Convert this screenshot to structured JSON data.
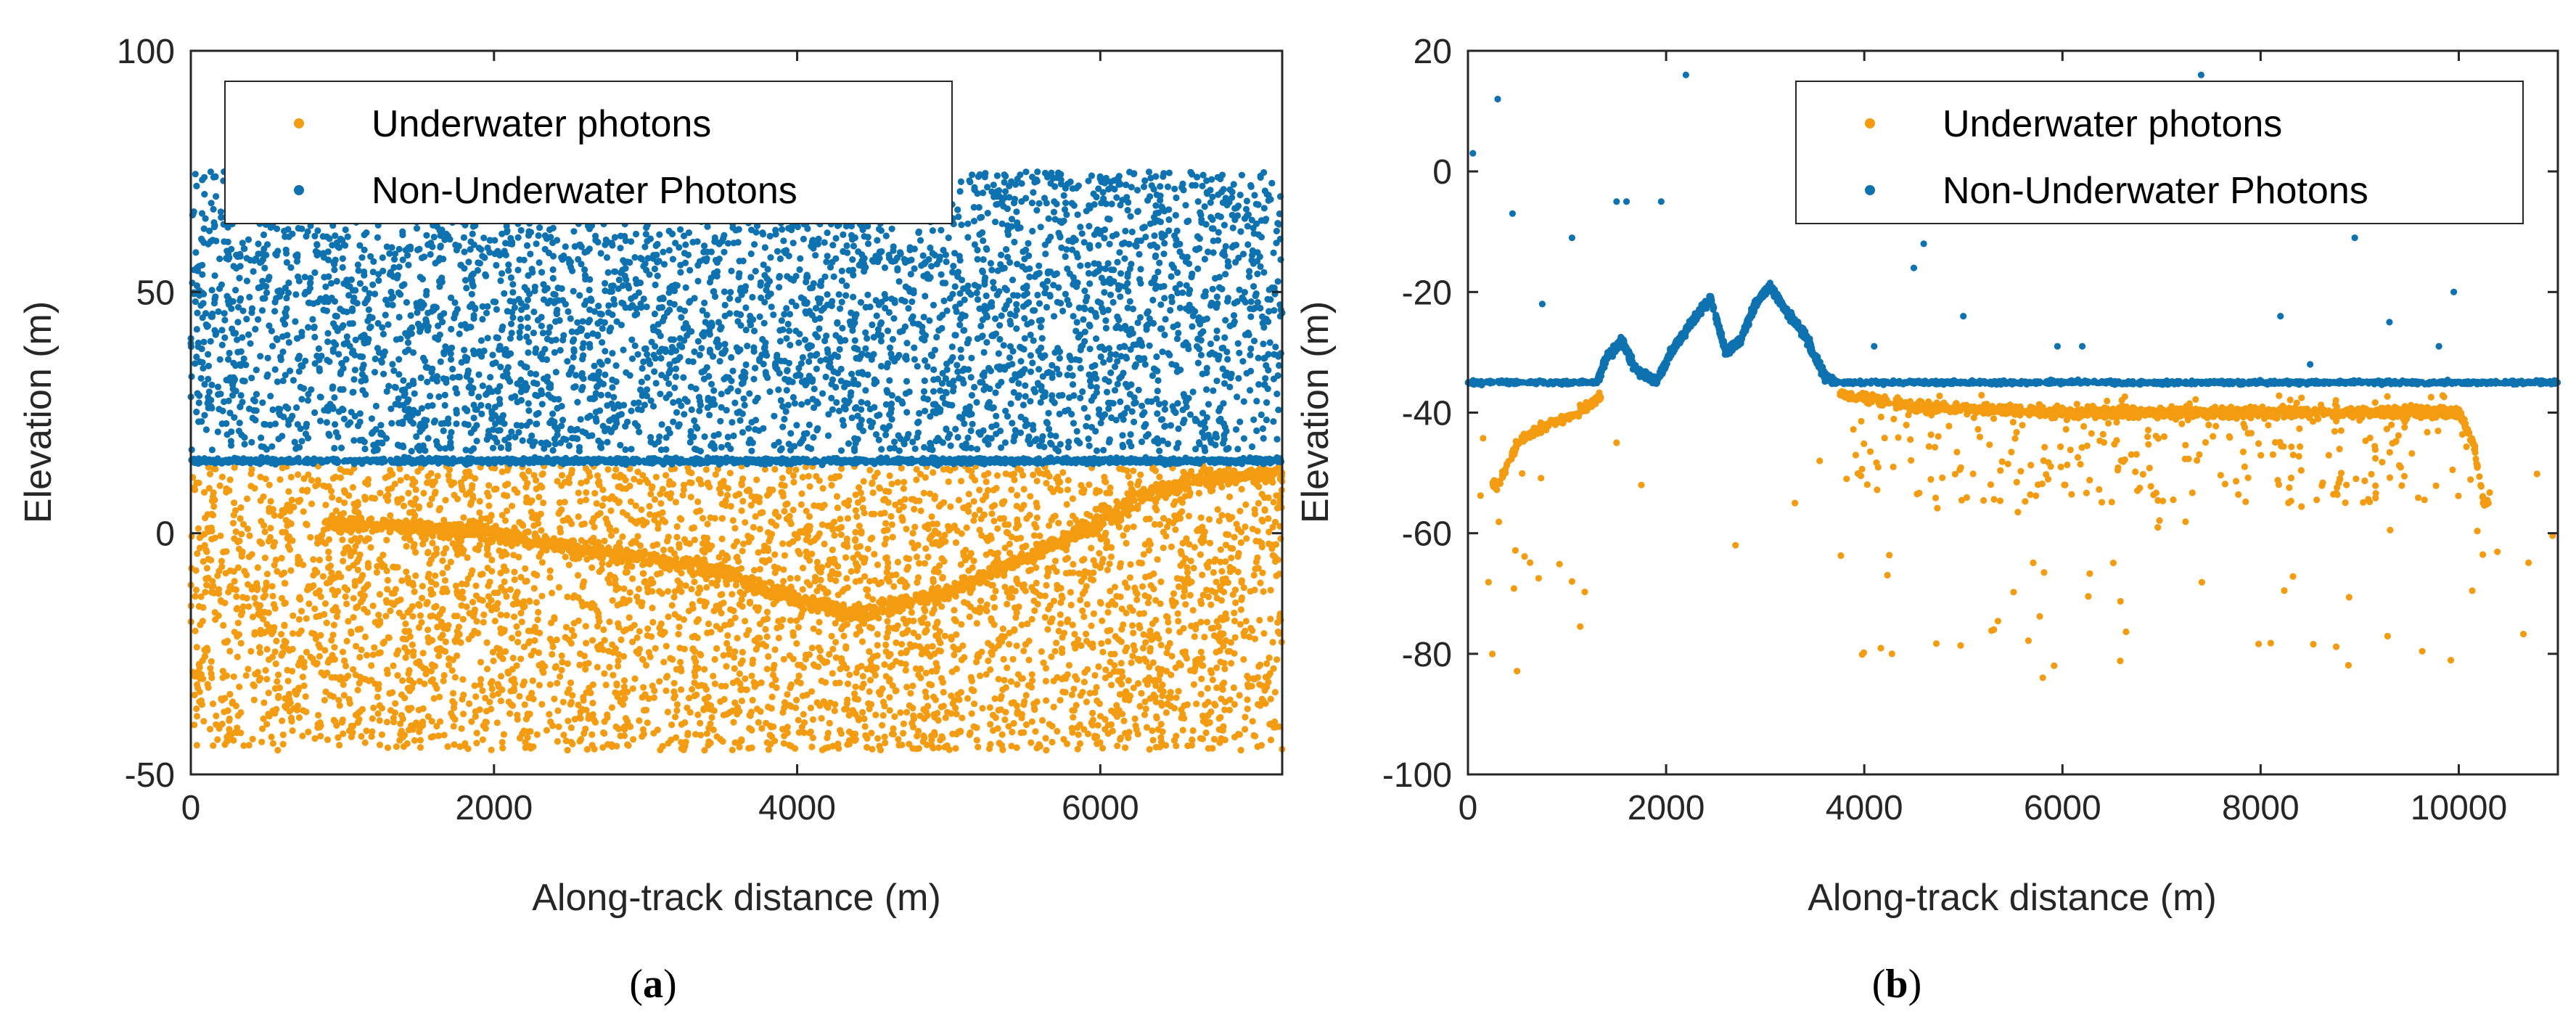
{
  "colors": {
    "underwater": "#F39C12",
    "non_underwater": "#0E72B0",
    "axis": "#262626"
  },
  "chart_data": [
    {
      "type": "scatter",
      "panel_label": "a",
      "xlabel": "Along-track distance (m)",
      "ylabel": "Elevation (m)",
      "xlim": [
        0,
        7200
      ],
      "ylim": [
        -50,
        100
      ],
      "xticks": [
        "0",
        "2000",
        "4000",
        "6000"
      ],
      "yticks": [
        "-50",
        "0",
        "50",
        "100"
      ],
      "xtick_values": [
        0,
        2000,
        4000,
        6000
      ],
      "ytick_values": [
        -50,
        0,
        50,
        100
      ],
      "legend": [
        "Underwater photons",
        "Non-Underwater Photons"
      ],
      "legend_position": "top",
      "series": [
        {
          "name": "Underwater photons",
          "description": "dense noise between -45 and 14 m with a bottom profile",
          "bottom_profile": [
            [
              1000,
              2
            ],
            [
              1500,
              1
            ],
            [
              2000,
              0
            ],
            [
              2500,
              -3
            ],
            [
              3000,
              -5
            ],
            [
              3500,
              -8
            ],
            [
              4000,
              -14
            ],
            [
              4400,
              -17
            ],
            [
              5000,
              -12
            ],
            [
              5500,
              -5
            ],
            [
              6000,
              2
            ],
            [
              6300,
              8
            ],
            [
              6600,
              11
            ],
            [
              7000,
              12
            ],
            [
              7200,
              12
            ]
          ],
          "noise_range": [
            -45,
            14
          ]
        },
        {
          "name": "Non-Underwater Photons",
          "description": "surface at ~15 m plus dense noise up to 75 m",
          "surface": 15,
          "noise_range": [
            17,
            75
          ]
        }
      ]
    },
    {
      "type": "scatter",
      "panel_label": "b",
      "xlabel": "Along-track distance (m)",
      "ylabel": "Elevation (m)",
      "xlim": [
        0,
        11000
      ],
      "ylim": [
        -100,
        20
      ],
      "xticks": [
        "0",
        "2000",
        "4000",
        "6000",
        "8000",
        "10000"
      ],
      "yticks": [
        "-100",
        "-80",
        "-60",
        "-40",
        "-20",
        "0",
        "20"
      ],
      "xtick_values": [
        0,
        2000,
        4000,
        6000,
        8000,
        10000
      ],
      "ytick_values": [
        -100,
        -80,
        -60,
        -40,
        -20,
        0,
        20
      ],
      "legend": [
        "Underwater photons",
        "Non-Underwater Photons"
      ],
      "legend_position": "top-right",
      "series": [
        {
          "name": "Underwater photons",
          "description": "shallow bottom near -40 m with sparse noise down to -85 m",
          "bottom_profile": [
            [
              300,
              -52
            ],
            [
              500,
              -45
            ],
            [
              800,
              -42
            ],
            [
              1100,
              -40
            ],
            [
              1300,
              -38
            ],
            [
              3800,
              -37
            ],
            [
              4500,
              -39
            ],
            [
              6000,
              -40
            ],
            [
              8000,
              -40
            ],
            [
              9500,
              -40
            ],
            [
              10000,
              -40
            ],
            [
              10150,
              -45
            ],
            [
              10250,
              -55
            ]
          ]
        },
        {
          "name": "Non-Underwater Photons",
          "description": "sea surface at -35 m with land ridges rising to -19 m",
          "surface": -35,
          "land_profile": [
            [
              1300,
              -35
            ],
            [
              1400,
              -31
            ],
            [
              1550,
              -28
            ],
            [
              1700,
              -33
            ],
            [
              1900,
              -35
            ],
            [
              2050,
              -30
            ],
            [
              2300,
              -24
            ],
            [
              2450,
              -21
            ],
            [
              2600,
              -30
            ],
            [
              2750,
              -28
            ],
            [
              2900,
              -22
            ],
            [
              3050,
              -19
            ],
            [
              3200,
              -23
            ],
            [
              3400,
              -27
            ],
            [
              3600,
              -34
            ],
            [
              3700,
              -35
            ]
          ],
          "outliers": [
            [
              50,
              3
            ],
            [
              300,
              12
            ],
            [
              450,
              -7
            ],
            [
              750,
              -22
            ],
            [
              1050,
              -11
            ],
            [
              1500,
              -5
            ],
            [
              1600,
              -5
            ],
            [
              1950,
              -5
            ],
            [
              2200,
              16
            ],
            [
              4100,
              -29
            ],
            [
              4500,
              -16
            ],
            [
              4600,
              -12
            ],
            [
              5000,
              -24
            ],
            [
              5950,
              -29
            ],
            [
              6200,
              -29
            ],
            [
              7400,
              16
            ],
            [
              8200,
              -24
            ],
            [
              8500,
              -32
            ],
            [
              8950,
              -11
            ],
            [
              9300,
              -25
            ],
            [
              9800,
              -29
            ],
            [
              9950,
              -20
            ]
          ]
        }
      ]
    }
  ]
}
